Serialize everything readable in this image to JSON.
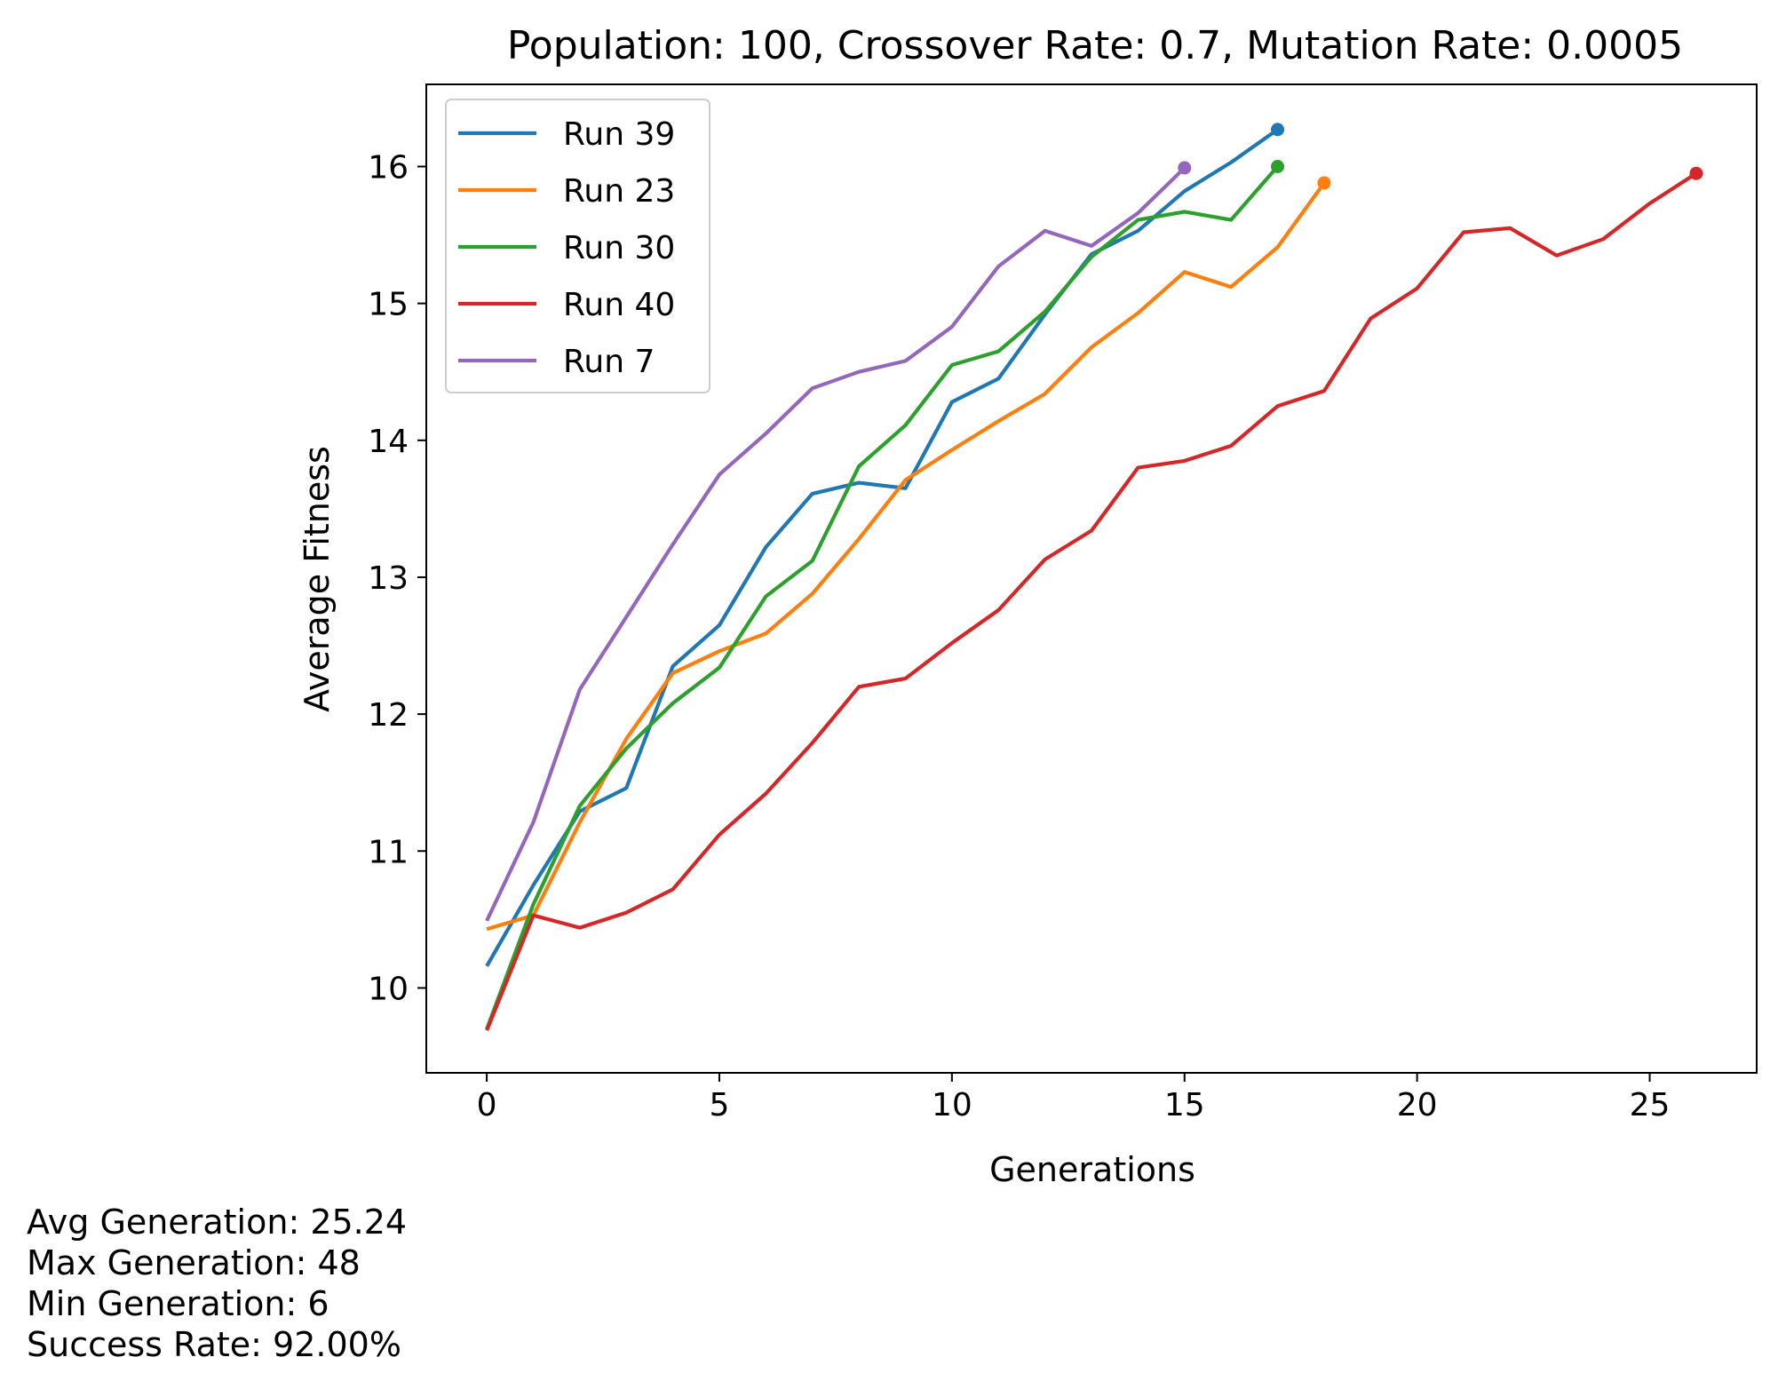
{
  "chart_data": {
    "type": "line",
    "title": "Population: 100, Crossover Rate: 0.7, Mutation Rate: 0.0005",
    "xlabel": "Generations",
    "ylabel": "Average Fitness",
    "xlim": [
      -1.3,
      27.3
    ],
    "ylim": [
      9.38,
      16.6
    ],
    "xticks": [
      0,
      5,
      10,
      15,
      20,
      25
    ],
    "yticks": [
      10,
      11,
      12,
      13,
      14,
      15,
      16
    ],
    "grid": false,
    "legend_position": "top-left",
    "series": [
      {
        "name": "Run 39",
        "color": "#1f77b4",
        "x": [
          0,
          1,
          2,
          3,
          4,
          5,
          6,
          7,
          8,
          9,
          10,
          11,
          12,
          13,
          14,
          15,
          16,
          17
        ],
        "y": [
          10.16,
          10.75,
          11.29,
          11.46,
          12.35,
          12.65,
          13.22,
          13.61,
          13.69,
          13.65,
          14.28,
          14.45,
          14.92,
          15.36,
          15.53,
          15.82,
          16.03,
          16.27
        ]
      },
      {
        "name": "Run 23",
        "color": "#ff7f0e",
        "x": [
          0,
          1,
          2,
          3,
          4,
          5,
          6,
          7,
          8,
          9,
          10,
          11,
          12,
          13,
          14,
          15,
          16,
          17,
          18
        ],
        "y": [
          10.43,
          10.53,
          11.21,
          11.82,
          12.3,
          12.46,
          12.59,
          12.88,
          13.28,
          13.71,
          13.93,
          14.14,
          14.34,
          14.68,
          14.93,
          15.23,
          15.12,
          15.41,
          15.88
        ]
      },
      {
        "name": "Run 30",
        "color": "#2ca02c",
        "x": [
          0,
          1,
          2,
          3,
          4,
          5,
          6,
          7,
          8,
          9,
          10,
          11,
          12,
          13,
          14,
          15,
          16,
          17
        ],
        "y": [
          9.7,
          10.61,
          11.33,
          11.75,
          12.08,
          12.34,
          12.86,
          13.12,
          13.81,
          14.11,
          14.55,
          14.65,
          14.94,
          15.34,
          15.61,
          15.67,
          15.61,
          16.0
        ]
      },
      {
        "name": "Run 40",
        "color": "#d62728",
        "x": [
          0,
          1,
          2,
          3,
          4,
          5,
          6,
          7,
          8,
          9,
          10,
          11,
          12,
          13,
          14,
          15,
          16,
          17,
          18,
          19,
          20,
          21,
          22,
          23,
          24,
          25,
          26
        ],
        "y": [
          9.69,
          10.53,
          10.44,
          10.55,
          10.72,
          11.12,
          11.42,
          11.79,
          12.2,
          12.26,
          12.52,
          12.76,
          13.13,
          13.34,
          13.8,
          13.85,
          13.96,
          14.25,
          14.36,
          14.89,
          15.11,
          15.52,
          15.55,
          15.35,
          15.47,
          15.73,
          15.95
        ]
      },
      {
        "name": "Run 7",
        "color": "#9467bd",
        "x": [
          0,
          1,
          2,
          3,
          4,
          5,
          6,
          7,
          8,
          9,
          10,
          11,
          12,
          13,
          14,
          15
        ],
        "y": [
          10.49,
          11.21,
          12.18,
          12.71,
          13.24,
          13.75,
          14.05,
          14.38,
          14.5,
          14.58,
          14.83,
          15.27,
          15.53,
          15.42,
          15.66,
          15.99
        ]
      }
    ]
  },
  "stats": {
    "avg_generation": "Avg Generation: 25.24",
    "max_generation": "Max Generation: 48",
    "min_generation": "Min Generation: 6",
    "success_rate": "Success Rate: 92.00%"
  }
}
